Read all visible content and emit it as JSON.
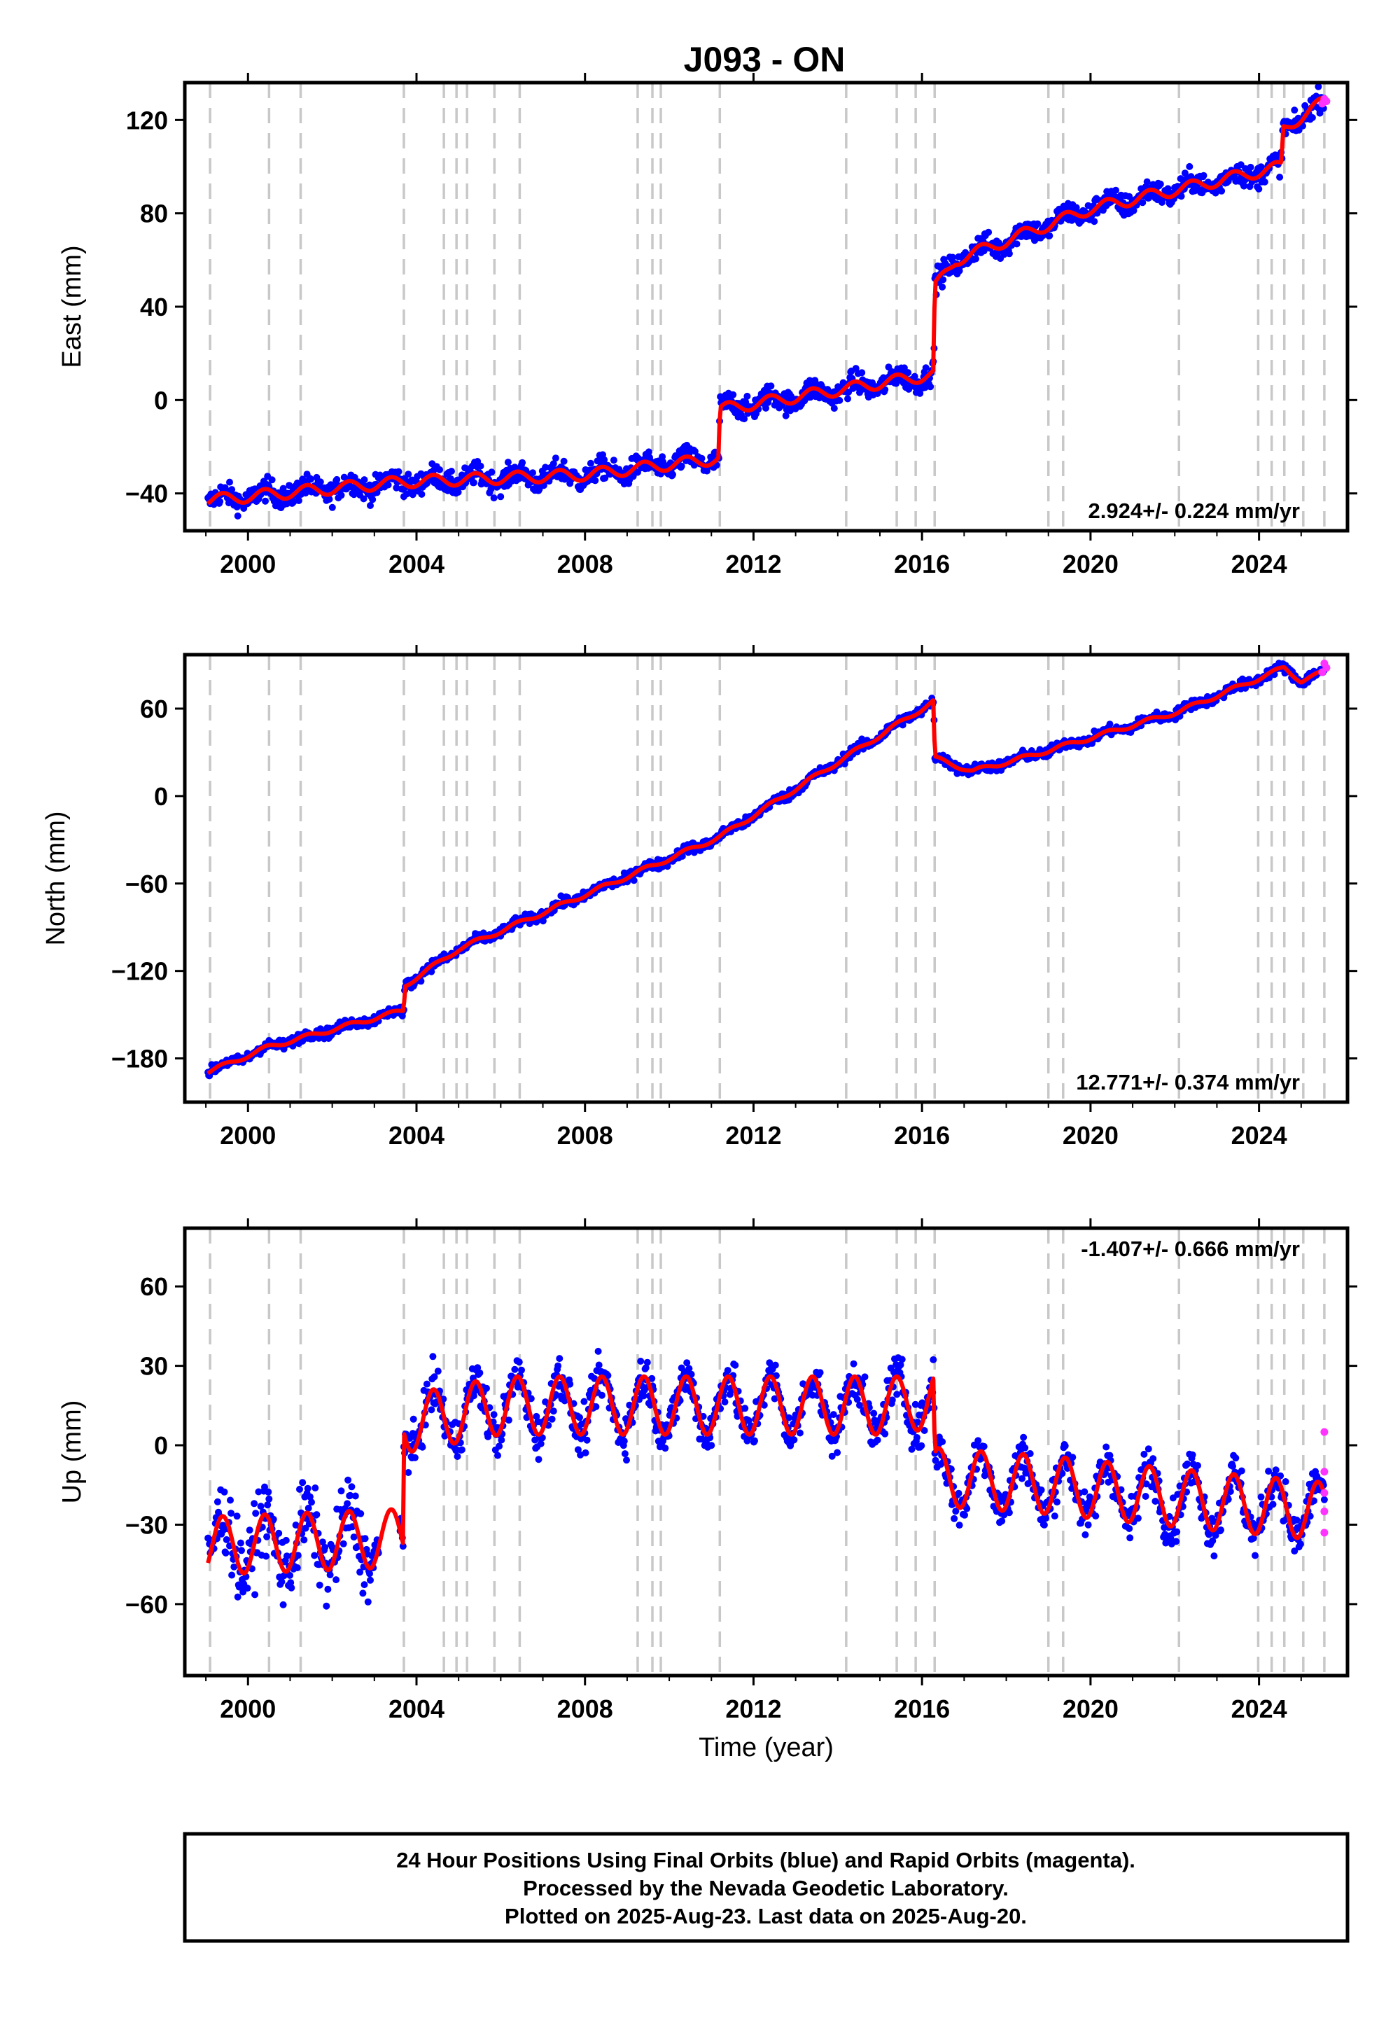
{
  "title": "J093 - ON",
  "colors": {
    "final_orbit_points": "#0000ff",
    "rapid_orbit_points": "#ff33ff",
    "model_line": "#ff0000",
    "event_lines": "#c8c8c8",
    "frame": "#000000"
  },
  "xlabel": "Time (year)",
  "footer": {
    "line1": "24 Hour Positions Using Final Orbits (blue) and Rapid Orbits (magenta).",
    "line2": "Processed by the Nevada Geodetic Laboratory.",
    "line3": "Plotted on 2025-Aug-23. Last data on 2025-Aug-20."
  },
  "chart_data": [
    {
      "type": "scatter",
      "panel": "east",
      "ylabel": "East (mm)",
      "rate_label": "2.924+/- 0.224 mm/yr",
      "rate_position": "bottom-right",
      "xlim": [
        1998.5,
        2026.1
      ],
      "ylim": [
        -56,
        136
      ],
      "xticks": [
        2000,
        2004,
        2008,
        2012,
        2016,
        2020,
        2024
      ],
      "xtick_labels": [
        "2000",
        "2004",
        "2008",
        "2012",
        "2016",
        "2020",
        "2024"
      ],
      "yticks": [
        -40,
        0,
        40,
        80,
        120
      ],
      "ytick_labels": [
        "−40",
        "0",
        "40",
        "80",
        "120"
      ],
      "event_lines_x": [
        1999.1,
        2000.5,
        2001.25,
        2003.7,
        2004.65,
        2004.95,
        2005.2,
        2005.85,
        2006.45,
        2009.25,
        2009.6,
        2009.8,
        2011.2,
        2014.2,
        2015.4,
        2015.85,
        2016.3,
        2019.0,
        2019.35,
        2022.1,
        2023.98,
        2024.3,
        2024.6,
        2025.05,
        2025.55
      ],
      "steps": [
        [
          2011.19,
          21
        ],
        [
          2016.29,
          37
        ],
        [
          2024.55,
          16
        ]
      ],
      "trend": [
        [
          1999.0,
          -43
        ],
        [
          2003.7,
          -35
        ],
        [
          2008.0,
          -32
        ],
        [
          2011.18,
          -25
        ],
        [
          2011.2,
          -4
        ],
        [
          2016.28,
          11
        ],
        [
          2016.3,
          48
        ],
        [
          2016.8,
          60
        ],
        [
          2020.0,
          82
        ],
        [
          2024.54,
          100
        ],
        [
          2024.56,
          116
        ],
        [
          2025.55,
          128
        ]
      ],
      "seasonal_amp": 2.5,
      "scatter_noise": 3.5,
      "rapid_points": [
        [
          2025.5,
          127
        ],
        [
          2025.55,
          129
        ],
        [
          2025.6,
          128
        ]
      ]
    },
    {
      "type": "scatter",
      "panel": "north",
      "ylabel": "North (mm)",
      "rate_label": "12.771+/- 0.374 mm/yr",
      "rate_position": "bottom-right",
      "xlim": [
        1998.5,
        2026.1
      ],
      "ylim": [
        -210,
        97
      ],
      "xticks": [
        2000,
        2004,
        2008,
        2012,
        2016,
        2020,
        2024
      ],
      "xtick_labels": [
        "2000",
        "2004",
        "2008",
        "2012",
        "2016",
        "2020",
        "2024"
      ],
      "yticks": [
        -180,
        -120,
        -60,
        0,
        60
      ],
      "ytick_labels": [
        "−180",
        "−120",
        "−60",
        "0",
        "60"
      ],
      "event_lines_x": [
        1999.1,
        2000.5,
        2001.25,
        2003.7,
        2004.65,
        2004.95,
        2005.2,
        2005.85,
        2006.45,
        2009.25,
        2009.6,
        2009.8,
        2011.2,
        2014.2,
        2015.4,
        2015.85,
        2016.3,
        2019.0,
        2019.35,
        2022.1,
        2023.98,
        2024.3,
        2024.6,
        2025.05,
        2025.55
      ],
      "steps": [
        [
          2016.29,
          -38
        ]
      ],
      "trend": [
        [
          1999.0,
          -190
        ],
        [
          2000.5,
          -172
        ],
        [
          2003.7,
          -147
        ],
        [
          2003.72,
          -130
        ],
        [
          2005.0,
          -105
        ],
        [
          2011.2,
          -28
        ],
        [
          2016.28,
          65
        ],
        [
          2016.3,
          26
        ],
        [
          2017.2,
          17
        ],
        [
          2018.5,
          27
        ],
        [
          2022.1,
          58
        ],
        [
          2024.6,
          88
        ],
        [
          2025.0,
          79
        ],
        [
          2025.55,
          85
        ]
      ],
      "seasonal_amp": 1.5,
      "scatter_noise": 2.5,
      "rapid_points": [
        [
          2025.5,
          85
        ],
        [
          2025.55,
          91
        ],
        [
          2025.6,
          88
        ]
      ]
    },
    {
      "type": "scatter",
      "panel": "up",
      "ylabel": "Up (mm)",
      "rate_label": "-1.407+/- 0.666 mm/yr",
      "rate_position": "top-right",
      "xlim": [
        1998.5,
        2026.1
      ],
      "ylim": [
        -87,
        82
      ],
      "xticks": [
        2000,
        2004,
        2008,
        2012,
        2016,
        2020,
        2024
      ],
      "xtick_labels": [
        "2000",
        "2004",
        "2008",
        "2012",
        "2016",
        "2020",
        "2024"
      ],
      "yticks": [
        -60,
        -30,
        0,
        30,
        60
      ],
      "ytick_labels": [
        "−60",
        "−30",
        "0",
        "30",
        "60"
      ],
      "event_lines_x": [
        1999.1,
        2000.5,
        2001.25,
        2003.7,
        2004.65,
        2004.95,
        2005.2,
        2005.85,
        2006.45,
        2009.25,
        2009.6,
        2009.8,
        2011.2,
        2014.2,
        2015.4,
        2015.85,
        2016.3,
        2019.0,
        2019.35,
        2022.1,
        2023.98,
        2024.3,
        2024.6,
        2025.05,
        2025.55
      ],
      "data_gap": [
        2003.1,
        2003.6
      ],
      "trend": [
        [
          1999.0,
          -38
        ],
        [
          2003.68,
          -35
        ],
        [
          2003.7,
          8
        ],
        [
          2006.0,
          15
        ],
        [
          2015.5,
          15
        ],
        [
          2016.28,
          18
        ],
        [
          2016.3,
          -12
        ],
        [
          2019.0,
          -15
        ],
        [
          2022.1,
          -20
        ],
        [
          2025.55,
          -25
        ]
      ],
      "seasonal_amp": 11,
      "scatter_noise": 6,
      "rapid_points": [
        [
          2025.55,
          5
        ],
        [
          2025.55,
          -10
        ],
        [
          2025.55,
          -18
        ],
        [
          2025.55,
          -25
        ],
        [
          2025.55,
          -33
        ]
      ]
    }
  ]
}
